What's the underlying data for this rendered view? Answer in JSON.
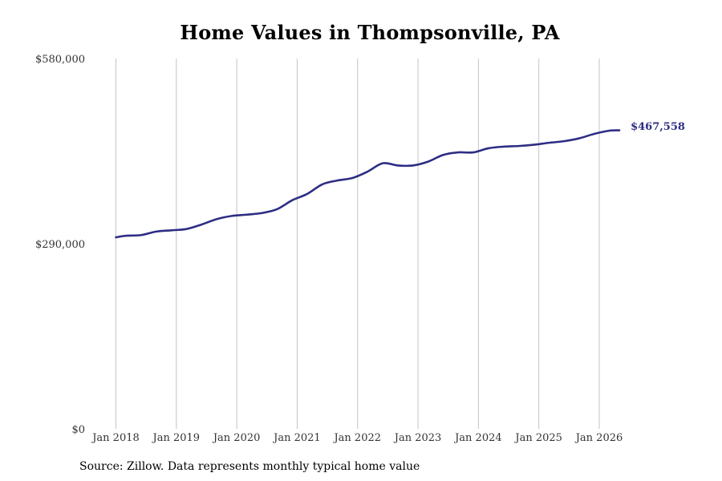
{
  "title": "Home Values in Thompsonville, PA",
  "source": "Source: Zillow. Data represents monthly typical home value",
  "colors": {
    "line": "#2e2d84",
    "grid": "#c4c4c4",
    "text": "#333333"
  },
  "chart_data": {
    "type": "line",
    "title": "Home Values in Thompsonville, PA",
    "xlabel": "",
    "ylabel": "",
    "y_ticks": [
      {
        "value": 0,
        "label": "$0"
      },
      {
        "value": 290000,
        "label": "$290,000"
      },
      {
        "value": 580000,
        "label": "$580,000"
      }
    ],
    "x_ticks": [
      {
        "value": "2018-01",
        "label": "Jan 2018"
      },
      {
        "value": "2019-01",
        "label": "Jan 2019"
      },
      {
        "value": "2020-01",
        "label": "Jan 2020"
      },
      {
        "value": "2021-01",
        "label": "Jan 2021"
      },
      {
        "value": "2022-01",
        "label": "Jan 2022"
      },
      {
        "value": "2023-01",
        "label": "Jan 2023"
      },
      {
        "value": "2024-01",
        "label": "Jan 2024"
      },
      {
        "value": "2025-01",
        "label": "Jan 2025"
      },
      {
        "value": "2026-01",
        "label": "Jan 2026"
      }
    ],
    "xlim": [
      "2018-01",
      "2026-06"
    ],
    "ylim": [
      0,
      580000
    ],
    "grid": "vertical",
    "end_label": "$467,558",
    "series": [
      {
        "points": [
          {
            "x": "2018-01",
            "y": 300000
          },
          {
            "x": "2018-03",
            "y": 302500
          },
          {
            "x": "2018-06",
            "y": 303500
          },
          {
            "x": "2018-09",
            "y": 309000
          },
          {
            "x": "2018-12",
            "y": 311000
          },
          {
            "x": "2019-03",
            "y": 313000
          },
          {
            "x": "2019-06",
            "y": 320000
          },
          {
            "x": "2019-09",
            "y": 328500
          },
          {
            "x": "2019-12",
            "y": 333500
          },
          {
            "x": "2020-03",
            "y": 335500
          },
          {
            "x": "2020-06",
            "y": 338000
          },
          {
            "x": "2020-09",
            "y": 344000
          },
          {
            "x": "2020-12",
            "y": 358000
          },
          {
            "x": "2021-03",
            "y": 368000
          },
          {
            "x": "2021-06",
            "y": 383000
          },
          {
            "x": "2021-09",
            "y": 389000
          },
          {
            "x": "2021-12",
            "y": 393000
          },
          {
            "x": "2022-03",
            "y": 403000
          },
          {
            "x": "2022-06",
            "y": 416000
          },
          {
            "x": "2022-09",
            "y": 412500
          },
          {
            "x": "2022-12",
            "y": 412500
          },
          {
            "x": "2023-03",
            "y": 418500
          },
          {
            "x": "2023-06",
            "y": 429000
          },
          {
            "x": "2023-09",
            "y": 433000
          },
          {
            "x": "2023-12",
            "y": 433000
          },
          {
            "x": "2024-03",
            "y": 439500
          },
          {
            "x": "2024-06",
            "y": 442000
          },
          {
            "x": "2024-09",
            "y": 443000
          },
          {
            "x": "2024-12",
            "y": 445000
          },
          {
            "x": "2025-03",
            "y": 448000
          },
          {
            "x": "2025-06",
            "y": 450500
          },
          {
            "x": "2025-09",
            "y": 455000
          },
          {
            "x": "2025-12",
            "y": 462000
          },
          {
            "x": "2026-03",
            "y": 467000
          },
          {
            "x": "2026-05",
            "y": 467558
          }
        ]
      }
    ]
  }
}
